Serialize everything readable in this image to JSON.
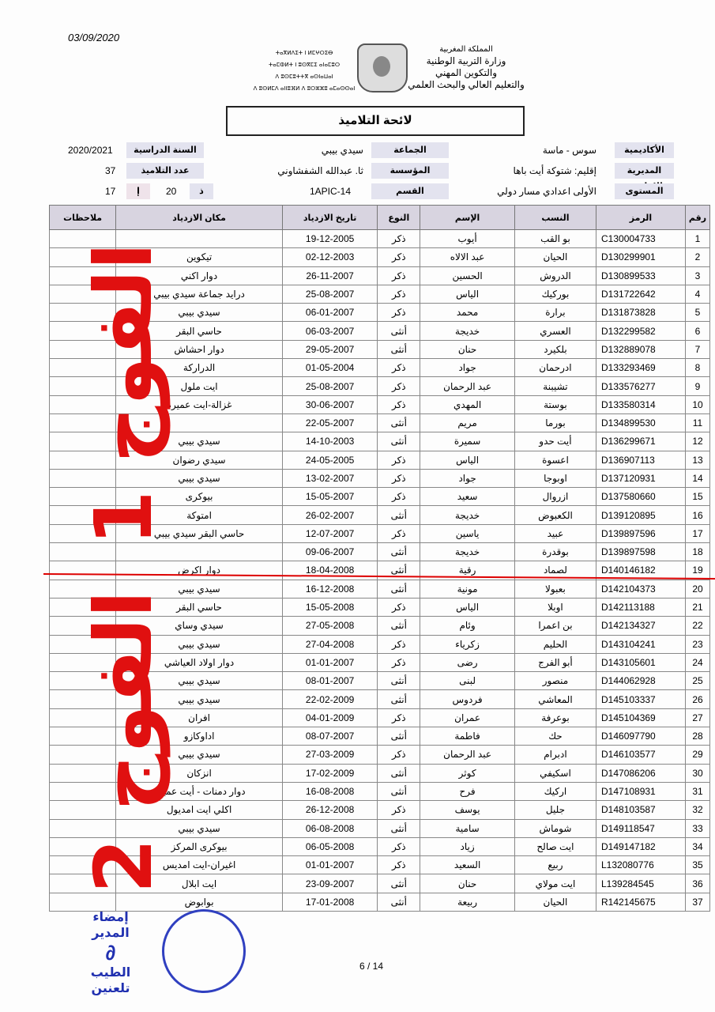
{
  "date": "03/09/2020",
  "tifinagh": [
    "ⵜⴰⴳⵍⴷⵉⵜ ⵏ ⵍⵎⵖⵔⵉⴱ",
    "ⵜⴰⵎⵀⵍⵜ ⵏ ⵓⵙⴳⵎⵉ ⴰⵏⴰⵎⵓⵔ",
    "ⴷ ⵓⵙⵎⵓⵜⵜⴳ ⴰⵙⵏⴰⵡⴰⵏ",
    "ⴷ ⵓⵙⵍⵎⴷ ⴰⵏⵏⵓⴼⵍ ⴷ ⵓⵔⵣⵣⵓ ⴰⵎⴰⵙⵙⴰⵏ"
  ],
  "ministry": [
    "المملكة المغربية",
    "وزارة التربية الوطنية",
    "والتكوين المهني",
    "والتعليم العالي والبحث العلمي"
  ],
  "title": "لائحة التلاميذ",
  "info": {
    "academy_label": "الأكاديمية",
    "academy": "سوس - ماسة",
    "commune_label": "الجماعة",
    "commune": "سيدي بيبي",
    "year_label": "السنة الدراسية",
    "year": "2020/2021",
    "direction_label": "المديرية الإقليمية",
    "direction": "إقليم: شتوكة أيت باها",
    "school_label": "المؤسسة",
    "school": "ثا. عبدالله الشفشاوني",
    "count_label": "عدد التلاميذ",
    "count": "37",
    "level_label": "المستوى",
    "level": "الأولى اعدادي مسار دولي",
    "class_label": "القسم",
    "class": "1APIC-14",
    "male_label": "ذ",
    "male": "20",
    "female_label": "إ",
    "female": "17"
  },
  "columns": [
    "رقم",
    "الرمز",
    "النسب",
    "الإسم",
    "النوع",
    "تاريخ الازدياد",
    "مكان الازدياد",
    "ملاحظات"
  ],
  "rows": [
    [
      "1",
      "C130004733",
      "بو القب",
      "أيوب",
      "ذكر",
      "19-12-2005",
      "",
      ""
    ],
    [
      "2",
      "D130299901",
      "الحيان",
      "عبد الالاه",
      "ذكر",
      "02-12-2003",
      "تيكوين",
      ""
    ],
    [
      "3",
      "D130899533",
      "الدروش",
      "الحسين",
      "ذكر",
      "26-11-2007",
      "دوار اكني",
      ""
    ],
    [
      "4",
      "D131722642",
      "بوركيك",
      "الياس",
      "ذكر",
      "25-08-2007",
      "درايد جماعة سيدي بيبي",
      ""
    ],
    [
      "5",
      "D131873828",
      "برارة",
      "محمد",
      "ذكر",
      "06-01-2007",
      "سيدي بيبي",
      ""
    ],
    [
      "6",
      "D132299582",
      "العسري",
      "خديجة",
      "أنثى",
      "06-03-2007",
      "حاسي البقر",
      ""
    ],
    [
      "7",
      "D132889078",
      "بلكيرد",
      "حنان",
      "أنثى",
      "29-05-2007",
      "دوار احشاش",
      ""
    ],
    [
      "8",
      "D133293469",
      "ادرحمان",
      "جواد",
      "ذكر",
      "01-05-2004",
      "الدراركة",
      ""
    ],
    [
      "9",
      "D133576277",
      "تشيبنة",
      "عبد الرحمان",
      "ذكر",
      "25-08-2007",
      "ايت ملول",
      ""
    ],
    [
      "10",
      "D133580314",
      "بوستة",
      "المهدي",
      "ذكر",
      "30-06-2007",
      "غزالة-ايت عميرة",
      ""
    ],
    [
      "11",
      "D134899530",
      "بورما",
      "مريم",
      "أنثى",
      "22-05-2007",
      "",
      ""
    ],
    [
      "12",
      "D136299671",
      "أيت حدو",
      "سميرة",
      "أنثى",
      "14-10-2003",
      "سيدي بيبي",
      ""
    ],
    [
      "13",
      "D136907113",
      "اعسوة",
      "الياس",
      "ذكر",
      "24-05-2005",
      "سيدي رضوان",
      ""
    ],
    [
      "14",
      "D137120931",
      "اوبوجا",
      "جواد",
      "ذكر",
      "13-02-2007",
      "سيدي بيبي",
      ""
    ],
    [
      "15",
      "D137580660",
      "ازروال",
      "سعيد",
      "ذكر",
      "15-05-2007",
      "بيوكرى",
      ""
    ],
    [
      "16",
      "D139120895",
      "الكعبوض",
      "خديجة",
      "أنثى",
      "26-02-2007",
      "امتوكة",
      ""
    ],
    [
      "17",
      "D139897596",
      "عبيد",
      "ياسين",
      "ذكر",
      "12-07-2007",
      "حاسي البقر سيدي بيبي",
      ""
    ],
    [
      "18",
      "D139897598",
      "بوقدرة",
      "خديجة",
      "أنثى",
      "09-06-2007",
      "",
      ""
    ],
    [
      "19",
      "D140146182",
      "لصماد",
      "رقية",
      "أنثى",
      "18-04-2008",
      "دوار اكرض",
      ""
    ],
    [
      "20",
      "D142104373",
      "بعبولا",
      "مونية",
      "أنثى",
      "16-12-2008",
      "سيدي بيبي",
      ""
    ],
    [
      "21",
      "D142113188",
      "اوبلا",
      "الياس",
      "ذكر",
      "15-05-2008",
      "حاسي البقر",
      ""
    ],
    [
      "22",
      "D142134327",
      "بن اعمرا",
      "وئام",
      "أنثى",
      "27-05-2008",
      "سيدي وساي",
      ""
    ],
    [
      "23",
      "D143104241",
      "الحليم",
      "زكرياء",
      "ذكر",
      "27-04-2008",
      "سيدي بيبي",
      ""
    ],
    [
      "24",
      "D143105601",
      "أبو الفرج",
      "رضى",
      "ذكر",
      "01-01-2007",
      "دوار اولاد العياشي",
      ""
    ],
    [
      "25",
      "D144062928",
      "منصور",
      "لبنى",
      "أنثى",
      "08-01-2007",
      "سيدي بيبي",
      ""
    ],
    [
      "26",
      "D145103337",
      "المعاشي",
      "فردوس",
      "أنثى",
      "22-02-2009",
      "سيدي بيبي",
      ""
    ],
    [
      "27",
      "D145104369",
      "بوعرفة",
      "عمران",
      "ذكر",
      "04-01-2009",
      "افران",
      ""
    ],
    [
      "28",
      "D146097790",
      "حك",
      "فاطمة",
      "أنثى",
      "08-07-2007",
      "اداوكازو",
      ""
    ],
    [
      "29",
      "D146103577",
      "ادبرام",
      "عبد الرحمان",
      "ذكر",
      "27-03-2009",
      "سيدي بيبي",
      ""
    ],
    [
      "30",
      "D147086206",
      "اسكيفي",
      "كوثر",
      "أنثى",
      "17-02-2009",
      "انزكان",
      ""
    ],
    [
      "31",
      "D147108931",
      "اركيك",
      "فرح",
      "أنثى",
      "16-08-2008",
      "دوار دمنات - أيت عميرة",
      ""
    ],
    [
      "32",
      "D148103587",
      "جليل",
      "يوسف",
      "ذكر",
      "26-12-2008",
      "اكلي ايت امديول",
      ""
    ],
    [
      "33",
      "D149118547",
      "شوماش",
      "سامية",
      "أنثى",
      "06-08-2008",
      "سيدي بيبي",
      ""
    ],
    [
      "34",
      "D149147182",
      "ايت صالح",
      "زياد",
      "ذكر",
      "06-05-2008",
      "بيوكرى المركز",
      ""
    ],
    [
      "35",
      "L132080776",
      "ربيع",
      "السعيد",
      "ذكر",
      "01-01-2007",
      "اغيران-ايت امديس",
      ""
    ],
    [
      "36",
      "L139284545",
      "ايت مولاي",
      "حنان",
      "أنثى",
      "23-09-2007",
      "ايت ابلال",
      ""
    ],
    [
      "37",
      "R142145675",
      "الحيان",
      "ربيعة",
      "أنثى",
      "17-01-2008",
      "بوابوض",
      ""
    ]
  ],
  "handwriting": {
    "group1": "الفوج 1",
    "group2": "الفوج 2"
  },
  "signature": {
    "title": "إمضاء المدير",
    "name": "الطيب تلعنين"
  },
  "pagination": "6  /  14"
}
